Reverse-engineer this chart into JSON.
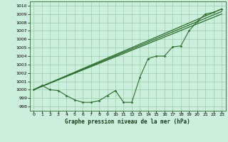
{
  "title": "Graphe pression niveau de la mer (hPa)",
  "background_color": "#cceedd",
  "grid_color": "#99ccaa",
  "line_color": "#2d6e2d",
  "xlim": [
    -0.5,
    23.5
  ],
  "ylim": [
    997.5,
    1010.5
  ],
  "yticks": [
    998,
    999,
    1000,
    1001,
    1002,
    1003,
    1004,
    1005,
    1006,
    1007,
    1008,
    1009,
    1010
  ],
  "xticks": [
    0,
    1,
    2,
    3,
    4,
    5,
    6,
    7,
    8,
    9,
    10,
    11,
    12,
    13,
    14,
    15,
    16,
    17,
    18,
    19,
    20,
    21,
    22,
    23
  ],
  "series_wiggly": {
    "x": [
      0,
      1,
      2,
      3,
      4,
      5,
      6,
      7,
      8,
      9,
      10,
      11,
      12,
      13,
      14,
      15,
      16,
      17,
      18,
      19,
      20,
      21,
      22,
      23
    ],
    "y": [
      1000.0,
      1000.5,
      1000.0,
      999.9,
      999.3,
      998.8,
      998.5,
      998.5,
      998.7,
      999.3,
      999.9,
      998.5,
      998.5,
      1001.5,
      1003.7,
      1004.0,
      1004.0,
      1005.1,
      1005.2,
      1007.0,
      1008.1,
      1009.0,
      1009.2,
      1009.6
    ]
  },
  "series_upper": {
    "x": [
      0,
      23
    ],
    "y": [
      1000.0,
      1009.6
    ]
  },
  "series_lower": {
    "x": [
      0,
      23
    ],
    "y": [
      1000.0,
      1009.3
    ]
  },
  "series_mid": {
    "x": [
      0,
      23
    ],
    "y": [
      1000.0,
      1009.0
    ]
  }
}
